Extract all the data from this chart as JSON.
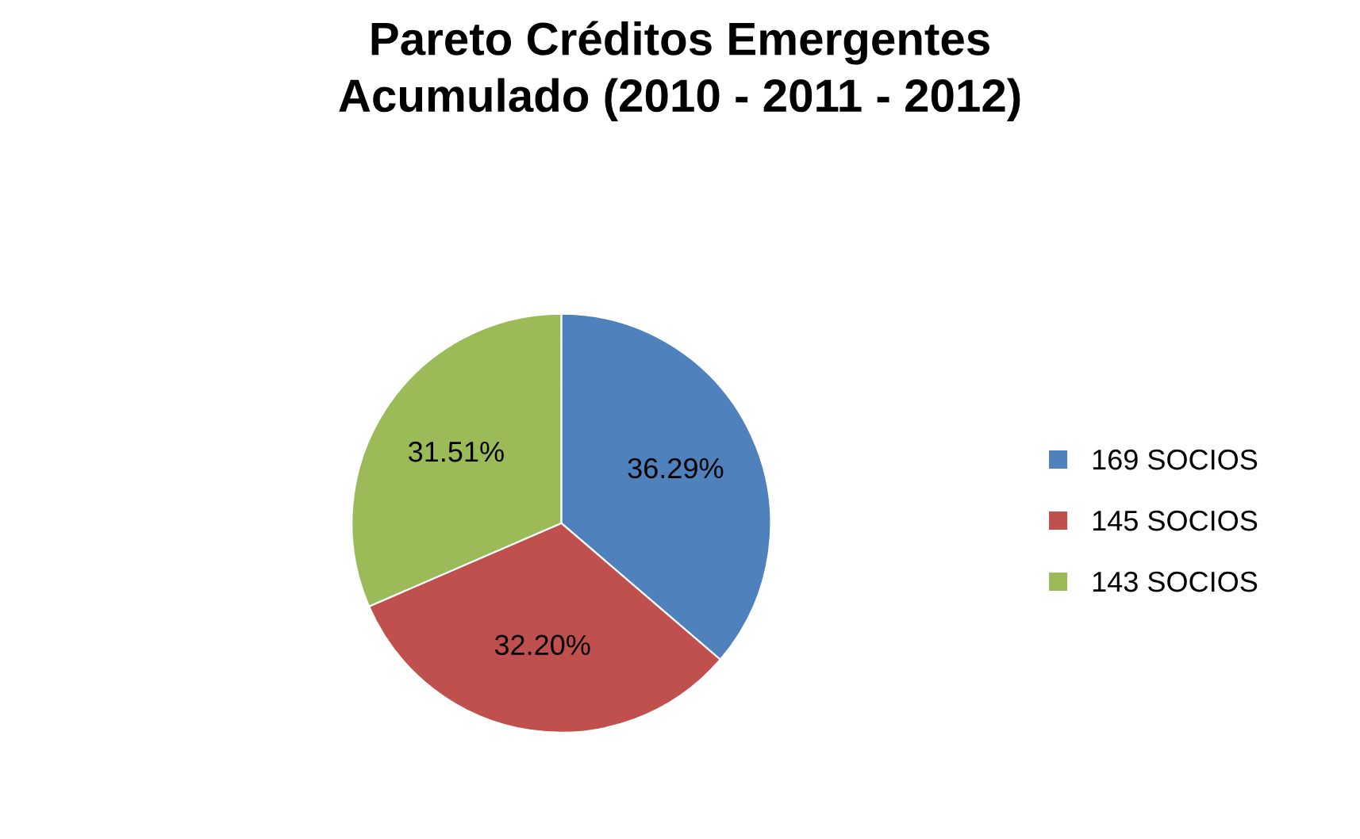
{
  "chart_data": {
    "type": "pie",
    "title": "Pareto Créditos Emergentes\nAcumulado (2010 - 2011 - 2012)",
    "categories": [
      "169 SOCIOS",
      "145 SOCIOS",
      "143 SOCIOS"
    ],
    "values": [
      36.29,
      32.2,
      31.51
    ],
    "value_labels": [
      "36.29%",
      "32.20%",
      "31.51%"
    ],
    "colors": [
      "#4f81bd",
      "#c0504d",
      "#9bbb59"
    ],
    "legend": "right"
  }
}
